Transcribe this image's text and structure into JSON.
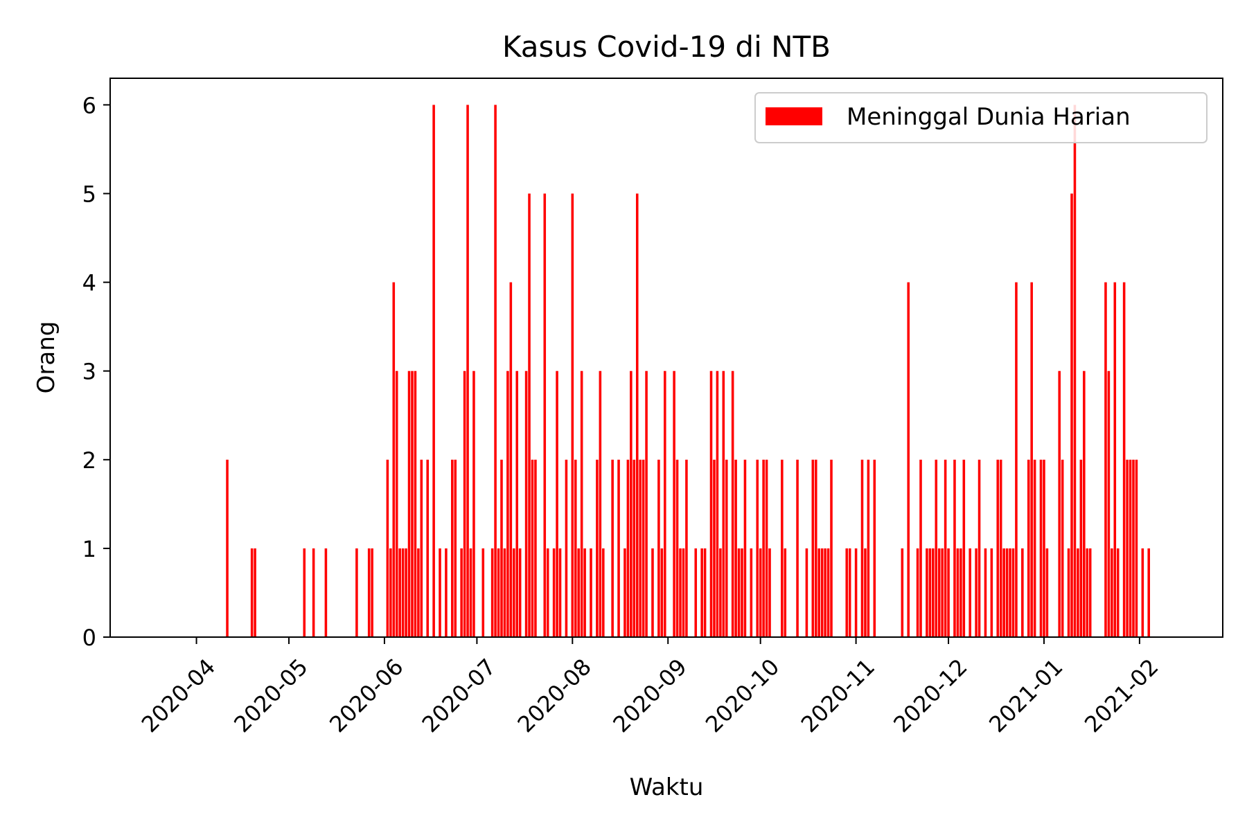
{
  "chart_data": {
    "type": "bar",
    "title": "Kasus Covid-19 di NTB",
    "xlabel": "Waktu",
    "ylabel": "Orang",
    "ylim": [
      0,
      6.3
    ],
    "xlim": [
      "2020-03-04",
      "2021-02-28"
    ],
    "grid": false,
    "legend_position": "top-right",
    "bar_color": "#ff0000",
    "y_ticks": [
      0,
      1,
      2,
      3,
      4,
      5,
      6
    ],
    "x_ticks": [
      "2020-04",
      "2020-05",
      "2020-06",
      "2020-07",
      "2020-08",
      "2020-09",
      "2020-10",
      "2020-11",
      "2020-12",
      "2021-01",
      "2021-02"
    ],
    "series": [
      {
        "name": "Meninggal Dunia Harian",
        "color": "#ff0000",
        "points": [
          [
            "2020-04-11",
            2
          ],
          [
            "2020-04-19",
            1
          ],
          [
            "2020-04-20",
            1
          ],
          [
            "2020-05-06",
            1
          ],
          [
            "2020-05-09",
            1
          ],
          [
            "2020-05-13",
            1
          ],
          [
            "2020-05-23",
            1
          ],
          [
            "2020-05-27",
            1
          ],
          [
            "2020-05-28",
            1
          ],
          [
            "2020-06-02",
            2
          ],
          [
            "2020-06-03",
            1
          ],
          [
            "2020-06-04",
            4
          ],
          [
            "2020-06-05",
            3
          ],
          [
            "2020-06-06",
            1
          ],
          [
            "2020-06-07",
            1
          ],
          [
            "2020-06-08",
            1
          ],
          [
            "2020-06-09",
            3
          ],
          [
            "2020-06-10",
            3
          ],
          [
            "2020-06-11",
            3
          ],
          [
            "2020-06-12",
            1
          ],
          [
            "2020-06-13",
            2
          ],
          [
            "2020-06-15",
            2
          ],
          [
            "2020-06-17",
            6
          ],
          [
            "2020-06-19",
            1
          ],
          [
            "2020-06-21",
            1
          ],
          [
            "2020-06-23",
            2
          ],
          [
            "2020-06-24",
            2
          ],
          [
            "2020-06-26",
            1
          ],
          [
            "2020-06-27",
            3
          ],
          [
            "2020-06-28",
            6
          ],
          [
            "2020-06-29",
            1
          ],
          [
            "2020-06-30",
            3
          ],
          [
            "2020-07-03",
            1
          ],
          [
            "2020-07-06",
            1
          ],
          [
            "2020-07-07",
            6
          ],
          [
            "2020-07-08",
            1
          ],
          [
            "2020-07-09",
            2
          ],
          [
            "2020-07-10",
            1
          ],
          [
            "2020-07-11",
            3
          ],
          [
            "2020-07-12",
            4
          ],
          [
            "2020-07-13",
            1
          ],
          [
            "2020-07-14",
            3
          ],
          [
            "2020-07-15",
            1
          ],
          [
            "2020-07-17",
            3
          ],
          [
            "2020-07-18",
            5
          ],
          [
            "2020-07-19",
            2
          ],
          [
            "2020-07-20",
            2
          ],
          [
            "2020-07-23",
            5
          ],
          [
            "2020-07-24",
            1
          ],
          [
            "2020-07-26",
            1
          ],
          [
            "2020-07-27",
            3
          ],
          [
            "2020-07-28",
            1
          ],
          [
            "2020-07-30",
            2
          ],
          [
            "2020-08-01",
            5
          ],
          [
            "2020-08-02",
            2
          ],
          [
            "2020-08-03",
            1
          ],
          [
            "2020-08-04",
            3
          ],
          [
            "2020-08-05",
            1
          ],
          [
            "2020-08-07",
            1
          ],
          [
            "2020-08-09",
            2
          ],
          [
            "2020-08-10",
            3
          ],
          [
            "2020-08-11",
            1
          ],
          [
            "2020-08-14",
            2
          ],
          [
            "2020-08-16",
            2
          ],
          [
            "2020-08-18",
            1
          ],
          [
            "2020-08-19",
            2
          ],
          [
            "2020-08-20",
            3
          ],
          [
            "2020-08-21",
            2
          ],
          [
            "2020-08-22",
            5
          ],
          [
            "2020-08-23",
            2
          ],
          [
            "2020-08-24",
            2
          ],
          [
            "2020-08-25",
            3
          ],
          [
            "2020-08-27",
            1
          ],
          [
            "2020-08-29",
            2
          ],
          [
            "2020-08-30",
            1
          ],
          [
            "2020-08-31",
            3
          ],
          [
            "2020-09-03",
            3
          ],
          [
            "2020-09-04",
            2
          ],
          [
            "2020-09-05",
            1
          ],
          [
            "2020-09-06",
            1
          ],
          [
            "2020-09-07",
            2
          ],
          [
            "2020-09-10",
            1
          ],
          [
            "2020-09-12",
            1
          ],
          [
            "2020-09-13",
            1
          ],
          [
            "2020-09-15",
            3
          ],
          [
            "2020-09-16",
            2
          ],
          [
            "2020-09-17",
            3
          ],
          [
            "2020-09-18",
            1
          ],
          [
            "2020-09-19",
            3
          ],
          [
            "2020-09-20",
            2
          ],
          [
            "2020-09-22",
            3
          ],
          [
            "2020-09-23",
            2
          ],
          [
            "2020-09-24",
            1
          ],
          [
            "2020-09-25",
            1
          ],
          [
            "2020-09-26",
            2
          ],
          [
            "2020-09-28",
            1
          ],
          [
            "2020-09-30",
            2
          ],
          [
            "2020-10-01",
            1
          ],
          [
            "2020-10-02",
            2
          ],
          [
            "2020-10-03",
            2
          ],
          [
            "2020-10-04",
            1
          ],
          [
            "2020-10-08",
            2
          ],
          [
            "2020-10-09",
            1
          ],
          [
            "2020-10-13",
            2
          ],
          [
            "2020-10-16",
            1
          ],
          [
            "2020-10-18",
            2
          ],
          [
            "2020-10-19",
            2
          ],
          [
            "2020-10-20",
            1
          ],
          [
            "2020-10-21",
            1
          ],
          [
            "2020-10-22",
            1
          ],
          [
            "2020-10-23",
            1
          ],
          [
            "2020-10-24",
            2
          ],
          [
            "2020-10-29",
            1
          ],
          [
            "2020-10-30",
            1
          ],
          [
            "2020-11-01",
            1
          ],
          [
            "2020-11-03",
            2
          ],
          [
            "2020-11-04",
            1
          ],
          [
            "2020-11-05",
            2
          ],
          [
            "2020-11-07",
            2
          ],
          [
            "2020-11-16",
            1
          ],
          [
            "2020-11-18",
            4
          ],
          [
            "2020-11-21",
            1
          ],
          [
            "2020-11-22",
            2
          ],
          [
            "2020-11-24",
            1
          ],
          [
            "2020-11-25",
            1
          ],
          [
            "2020-11-26",
            1
          ],
          [
            "2020-11-27",
            2
          ],
          [
            "2020-11-28",
            1
          ],
          [
            "2020-11-29",
            1
          ],
          [
            "2020-11-30",
            2
          ],
          [
            "2020-12-01",
            1
          ],
          [
            "2020-12-03",
            2
          ],
          [
            "2020-12-04",
            1
          ],
          [
            "2020-12-05",
            1
          ],
          [
            "2020-12-06",
            2
          ],
          [
            "2020-12-08",
            1
          ],
          [
            "2020-12-10",
            1
          ],
          [
            "2020-12-11",
            2
          ],
          [
            "2020-12-13",
            1
          ],
          [
            "2020-12-15",
            1
          ],
          [
            "2020-12-17",
            2
          ],
          [
            "2020-12-18",
            2
          ],
          [
            "2020-12-19",
            1
          ],
          [
            "2020-12-20",
            1
          ],
          [
            "2020-12-21",
            1
          ],
          [
            "2020-12-22",
            1
          ],
          [
            "2020-12-23",
            4
          ],
          [
            "2020-12-25",
            1
          ],
          [
            "2020-12-27",
            2
          ],
          [
            "2020-12-28",
            4
          ],
          [
            "2020-12-29",
            2
          ],
          [
            "2020-12-31",
            2
          ],
          [
            "2021-01-01",
            2
          ],
          [
            "2021-01-02",
            1
          ],
          [
            "2021-01-06",
            3
          ],
          [
            "2021-01-07",
            2
          ],
          [
            "2021-01-09",
            1
          ],
          [
            "2021-01-10",
            5
          ],
          [
            "2021-01-11",
            6
          ],
          [
            "2021-01-12",
            1
          ],
          [
            "2021-01-13",
            2
          ],
          [
            "2021-01-14",
            3
          ],
          [
            "2021-01-15",
            1
          ],
          [
            "2021-01-16",
            1
          ],
          [
            "2021-01-21",
            4
          ],
          [
            "2021-01-22",
            3
          ],
          [
            "2021-01-23",
            1
          ],
          [
            "2021-01-24",
            4
          ],
          [
            "2021-01-25",
            1
          ],
          [
            "2021-01-27",
            4
          ],
          [
            "2021-01-28",
            2
          ],
          [
            "2021-01-29",
            2
          ],
          [
            "2021-01-30",
            2
          ],
          [
            "2021-01-31",
            2
          ],
          [
            "2021-02-02",
            1
          ],
          [
            "2021-02-04",
            1
          ]
        ]
      }
    ]
  }
}
